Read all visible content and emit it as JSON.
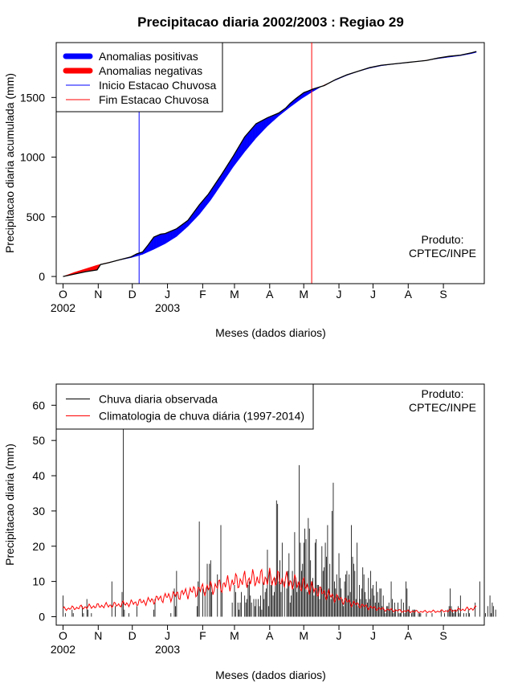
{
  "title": "Precipitacao diaria 2002/2003 : Regiao 29",
  "produto": [
    "Produto:",
    "CPTEC/INPE"
  ],
  "chart_data": [
    {
      "type": "area",
      "ylabel": "Precipitacao diaria acumulada (mm)",
      "xlabel": "Meses (dados diarios)",
      "month_ticks": [
        "O",
        "N",
        "D",
        "J",
        "F",
        "M",
        "A",
        "M",
        "J",
        "J",
        "A",
        "S"
      ],
      "year_labels": [
        {
          "label": "2002",
          "month": "O"
        },
        {
          "label": "2003",
          "month": "J"
        }
      ],
      "y_ticks": [
        0,
        500,
        1000,
        1500
      ],
      "ylim": [
        -60,
        1960
      ],
      "x_range_days": [
        -6,
        371
      ],
      "legend": [
        {
          "label": "Anomalias positivas",
          "color": "#0000ff",
          "style": "thick"
        },
        {
          "label": "Anomalias negativas",
          "color": "#ff0000",
          "style": "thick"
        },
        {
          "label": "Inicio Estacao Chuvosa",
          "color": "#0000ff",
          "style": "thin"
        },
        {
          "label": "Fim Estacao Chuvosa",
          "color": "#ff0000",
          "style": "thin"
        }
      ],
      "rainy_season_start_day": 67,
      "rainy_season_end_day": 219,
      "observed_accumulated": {
        "day": [
          0,
          10,
          20,
          30,
          33,
          40,
          50,
          60,
          65,
          70,
          75,
          80,
          86,
          90,
          100,
          110,
          120,
          128,
          140,
          150,
          155,
          160,
          170,
          180,
          190,
          196,
          200,
          205,
          212,
          220,
          230,
          240,
          250,
          260,
          270,
          280,
          290,
          300,
          310,
          320,
          330,
          340,
          350,
          360,
          364
        ],
        "value": [
          0,
          20,
          40,
          55,
          100,
          115,
          140,
          165,
          190,
          205,
          265,
          330,
          355,
          360,
          400,
          470,
          600,
          690,
          860,
          1010,
          1090,
          1170,
          1280,
          1330,
          1370,
          1410,
          1450,
          1490,
          1540,
          1570,
          1600,
          1650,
          1690,
          1720,
          1750,
          1770,
          1780,
          1790,
          1800,
          1810,
          1830,
          1845,
          1855,
          1875,
          1885
        ]
      },
      "climatology_accumulated": {
        "day": [
          0,
          10,
          20,
          30,
          40,
          50,
          60,
          70,
          80,
          90,
          100,
          110,
          120,
          130,
          140,
          150,
          160,
          170,
          180,
          190,
          200,
          210,
          220,
          230,
          240,
          250,
          260,
          270,
          280,
          290,
          300,
          310,
          320,
          330,
          340,
          350,
          360,
          364
        ],
        "value": [
          0,
          35,
          65,
          95,
          118,
          138,
          158,
          185,
          228,
          275,
          335,
          420,
          520,
          640,
          780,
          920,
          1045,
          1160,
          1260,
          1345,
          1420,
          1490,
          1550,
          1605,
          1645,
          1685,
          1718,
          1745,
          1765,
          1778,
          1788,
          1800,
          1812,
          1825,
          1838,
          1850,
          1868,
          1878
        ]
      }
    },
    {
      "type": "bar",
      "ylabel": "Precipitacao diaria (mm)",
      "xlabel": "Meses (dados diarios)",
      "month_ticks": [
        "O",
        "N",
        "D",
        "J",
        "F",
        "M",
        "A",
        "M",
        "J",
        "J",
        "A",
        "S"
      ],
      "year_labels": [
        {
          "label": "2002",
          "month": "O"
        },
        {
          "label": "2003",
          "month": "J"
        }
      ],
      "y_ticks": [
        0,
        10,
        20,
        30,
        40,
        50,
        60
      ],
      "ylim": [
        -2.4,
        66
      ],
      "x_range_days": [
        -6,
        371
      ],
      "legend": [
        {
          "label": "Chuva diaria observada",
          "color": "#000000",
          "style": "thin"
        },
        {
          "label": "Climatologia de chuva diária (1997-2014)",
          "color": "#ff0000",
          "style": "thin"
        }
      ],
      "observed_daily": [
        6,
        0,
        1,
        0,
        0,
        0,
        0,
        0,
        2,
        1,
        0,
        0,
        0,
        0,
        0,
        0,
        0,
        3,
        1,
        0,
        0,
        5,
        2,
        0,
        0,
        1,
        0,
        0,
        0,
        0,
        0,
        0,
        0,
        0,
        0,
        0,
        0,
        0,
        0,
        0,
        0,
        0,
        0,
        10,
        0,
        0,
        3,
        0,
        0,
        0,
        0,
        0,
        7,
        66,
        2,
        0,
        0,
        0,
        1,
        0,
        0,
        0,
        0,
        0,
        0,
        3,
        0,
        0,
        0,
        0,
        0,
        0,
        0,
        0,
        0,
        0,
        0,
        0,
        0,
        0,
        2,
        5,
        0,
        0,
        0,
        0,
        0,
        0,
        0,
        0,
        0,
        0,
        0,
        0,
        0,
        1,
        0,
        0,
        8,
        3,
        13,
        0,
        0,
        0,
        0,
        0,
        0,
        0,
        0,
        0,
        0,
        0,
        0,
        0,
        0,
        0,
        0,
        0,
        3,
        10,
        27,
        0,
        0,
        8,
        0,
        7,
        0,
        15,
        0,
        15,
        16,
        7,
        0,
        0,
        0,
        0,
        12,
        0,
        0,
        26,
        7,
        0,
        0,
        0,
        0,
        0,
        0,
        0,
        0,
        4,
        0,
        9,
        7,
        0,
        4,
        2,
        4,
        7,
        0,
        0,
        6,
        4,
        5,
        9,
        10,
        6,
        4,
        0,
        5,
        3,
        5,
        0,
        5,
        3,
        6,
        2,
        10,
        5,
        7,
        8,
        19,
        3,
        13,
        9,
        10,
        6,
        7,
        11,
        33,
        32,
        10,
        16,
        7,
        21,
        0,
        10,
        0,
        8,
        13,
        18,
        4,
        6,
        13,
        8,
        24,
        11,
        7,
        10,
        43,
        21,
        13,
        15,
        21,
        25,
        22,
        7,
        28,
        25,
        16,
        10,
        11,
        6,
        21,
        22,
        9,
        9,
        5,
        8,
        20,
        13,
        14,
        21,
        17,
        26,
        8,
        15,
        5,
        30,
        38,
        10,
        8,
        12,
        6,
        18,
        11,
        8,
        5,
        3,
        10,
        12,
        13,
        6,
        12,
        7,
        26,
        17,
        15,
        13,
        5,
        21,
        3,
        9,
        5,
        8,
        14,
        12,
        7,
        5,
        4,
        11,
        5,
        13,
        8,
        9,
        6,
        4,
        10,
        7,
        4,
        8,
        8,
        3,
        6,
        2,
        1,
        3,
        3,
        4,
        2,
        10,
        5,
        1,
        4,
        2,
        0,
        4,
        1,
        1,
        5,
        0,
        4,
        1,
        10,
        8,
        2,
        3,
        0,
        1,
        2,
        2,
        2,
        0,
        0,
        1,
        1,
        1,
        0,
        0,
        0,
        0,
        1,
        0,
        0,
        0,
        0,
        1,
        0,
        0,
        0,
        0,
        0,
        0,
        0,
        2,
        0,
        0,
        1,
        0,
        0,
        2,
        3,
        8,
        3,
        2,
        1,
        2,
        2,
        0,
        3,
        1,
        6,
        0,
        0,
        1,
        0,
        1,
        0,
        2,
        1,
        0,
        0,
        0,
        0,
        4,
        0,
        0,
        0,
        10,
        0,
        0,
        0,
        0,
        1,
        0,
        3,
        0,
        6,
        1,
        4,
        3,
        0,
        2
      ],
      "climatology_daily": {
        "day": [
          0,
          15,
          30,
          45,
          60,
          75,
          90,
          105,
          120,
          135,
          150,
          165,
          180,
          195,
          210,
          225,
          240,
          255,
          270,
          285,
          300,
          315,
          330,
          345,
          360,
          364
        ],
        "value": [
          2.2,
          2.6,
          3.0,
          3.3,
          3.8,
          4.4,
          5.5,
          6.5,
          7.6,
          8.5,
          9.8,
          10.6,
          10.9,
          10.3,
          9.1,
          7.3,
          5.4,
          3.8,
          2.6,
          2.0,
          1.6,
          1.4,
          1.5,
          1.8,
          2.3,
          2.5
        ]
      }
    }
  ]
}
